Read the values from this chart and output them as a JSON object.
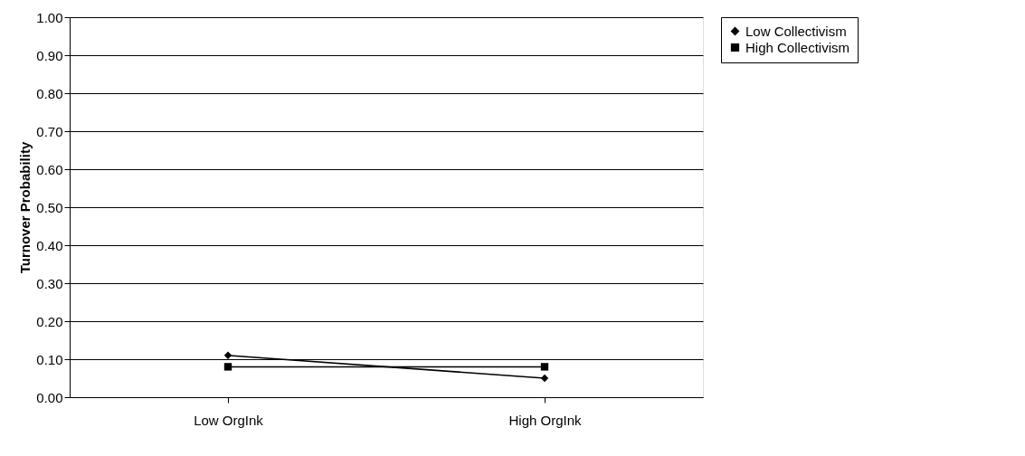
{
  "chart_data": {
    "type": "line",
    "ylabel": "Turnover Probability",
    "categories": [
      "Low OrgInk",
      "High OrgInk"
    ],
    "series": [
      {
        "name": "Low Collectivism",
        "color": "#000000",
        "marker": "diamond",
        "values": [
          0.11,
          0.05
        ]
      },
      {
        "name": "High Collectivism",
        "color": "#000000",
        "marker": "square",
        "values": [
          0.08,
          0.08
        ]
      }
    ],
    "ylim": [
      0,
      1
    ],
    "yticks": [
      {
        "value": 0,
        "label": "0.00"
      },
      {
        "value": 0.1,
        "label": "0.10"
      },
      {
        "value": 0.2,
        "label": "0.20"
      },
      {
        "value": 0.3,
        "label": "0.30"
      },
      {
        "value": 0.4,
        "label": "0.40"
      },
      {
        "value": 0.5,
        "label": "0.50"
      },
      {
        "value": 0.6,
        "label": "0.60"
      },
      {
        "value": 0.7,
        "label": "0.70"
      },
      {
        "value": 0.8,
        "label": "0.80"
      },
      {
        "value": 0.9,
        "label": "0.90"
      },
      {
        "value": 1,
        "label": "1.00"
      }
    ],
    "grid": "y",
    "legend": "right",
    "line_style": "solid"
  }
}
